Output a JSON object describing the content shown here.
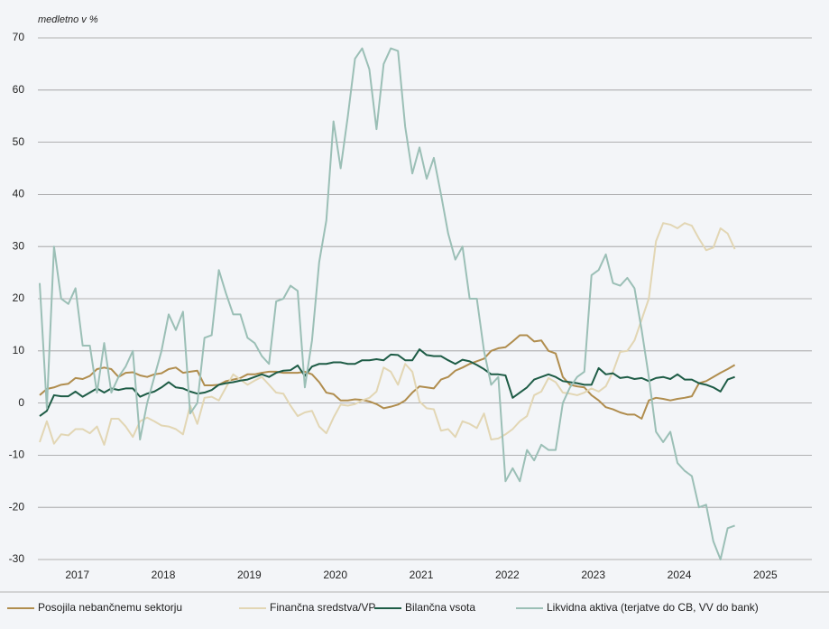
{
  "chart_data": {
    "type": "line",
    "y_label": "medletno v %",
    "categories": [
      null,
      null,
      null,
      null,
      null,
      null,
      "2017",
      null,
      null,
      null,
      null,
      null,
      null,
      null,
      null,
      null,
      null,
      null,
      "2018",
      null,
      null,
      null,
      null,
      null,
      null,
      null,
      null,
      null,
      null,
      null,
      "2019",
      null,
      null,
      null,
      null,
      null,
      null,
      null,
      null,
      null,
      null,
      null,
      "2020",
      null,
      null,
      null,
      null,
      null,
      null,
      null,
      null,
      null,
      null,
      null,
      "2021",
      null,
      null,
      null,
      null,
      null,
      null,
      null,
      null,
      null,
      null,
      null,
      "2022",
      null,
      null,
      null,
      null,
      null,
      null,
      null,
      null,
      null,
      null,
      null,
      "2023",
      null,
      null,
      null,
      null,
      null,
      null,
      null,
      null,
      null,
      null,
      null,
      "2024",
      null,
      null,
      null,
      null,
      null,
      null,
      null,
      null,
      null,
      null,
      null,
      "2025",
      null,
      null,
      null,
      null,
      null
    ],
    "series": [
      {
        "name": "Posojila nebančnemu sektorju",
        "color": "#b08d4e",
        "values": [
          1.5,
          2.7,
          3,
          3.5,
          3.7,
          4.8,
          4.6,
          5.2,
          6.5,
          6.8,
          6.5,
          5,
          5.8,
          5.9,
          5.3,
          5,
          5.5,
          5.7,
          6.5,
          6.8,
          5.8,
          6,
          6.2,
          3.4,
          3.4,
          3.5,
          4.2,
          4.5,
          4.8,
          5.5,
          5.5,
          5.8,
          6,
          6,
          5.8,
          5.8,
          5.8,
          6,
          5.5,
          4,
          2,
          1.7,
          0.5,
          0.5,
          0.7,
          0.6,
          0.3,
          -0.2,
          -1,
          -0.7,
          -0.3,
          0.5,
          2,
          3.2,
          3,
          2.8,
          4.5,
          5,
          6.2,
          6.8,
          7.5,
          8,
          8.5,
          10,
          10.5,
          10.7,
          11.8,
          13,
          13,
          11.8,
          12,
          10,
          9.5,
          5,
          3.5,
          3.2,
          3,
          1.5,
          0.5,
          -0.8,
          -1.2,
          -1.8,
          -2.2,
          -2.2,
          -3,
          0.5,
          1,
          0.8,
          0.5,
          0.8,
          1,
          1.3,
          3.8,
          4.2,
          5,
          5.8,
          6.5,
          7.3,
          null,
          null,
          null,
          null,
          null,
          null,
          null,
          null,
          null,
          null
        ]
      },
      {
        "name": "Finančna sredstva/VP",
        "color": "#e2d6b4",
        "values": [
          -7.5,
          -3.5,
          -7.8,
          -6,
          -6.2,
          -5,
          -5,
          -5.8,
          -4.5,
          -8,
          -3,
          -3,
          -4.5,
          -6.5,
          -3.5,
          -2.8,
          -3.5,
          -4.3,
          -4.5,
          -5,
          -6,
          -0.5,
          -4,
          1,
          1.2,
          0.5,
          3,
          5.5,
          4.5,
          3.5,
          4.3,
          5,
          3.5,
          2,
          1.8,
          -0.5,
          -2.5,
          -1.8,
          -1.5,
          -4.5,
          -5.8,
          -2.8,
          -0.3,
          -0.5,
          -0.2,
          0.5,
          1,
          2.2,
          6.8,
          6,
          3.5,
          7.5,
          6,
          0.3,
          -1,
          -1.2,
          -5.3,
          -5,
          -6.5,
          -3.5,
          -4,
          -4.8,
          -2,
          -7,
          -6.8,
          -6,
          -5,
          -3.5,
          -2.5,
          1.5,
          2.2,
          4.8,
          4,
          2,
          1.8,
          1.5,
          2,
          2.8,
          2.2,
          3.2,
          6,
          9.8,
          10,
          12,
          16,
          20,
          31,
          34.5,
          34.2,
          33.5,
          34.5,
          34,
          31.5,
          29.3,
          29.8,
          33.5,
          32.5,
          29.5,
          null,
          null,
          null,
          null,
          null,
          null,
          null,
          null,
          null,
          null
        ]
      },
      {
        "name": "Bilančna vsota",
        "color": "#1e5c46",
        "values": [
          -2.5,
          -1.5,
          1.5,
          1.3,
          1.3,
          2.2,
          1.2,
          2,
          2.8,
          2,
          2.8,
          2.5,
          2.8,
          2.8,
          1.2,
          1.8,
          2.2,
          3,
          4,
          3,
          2.8,
          2.2,
          1.8,
          2,
          2.5,
          3.5,
          3.8,
          4,
          4.3,
          4.5,
          5,
          5.5,
          5,
          5.8,
          6.2,
          6.3,
          7.2,
          5.2,
          7,
          7.5,
          7.5,
          7.8,
          7.8,
          7.5,
          7.5,
          8.2,
          8.2,
          8.4,
          8.2,
          9.3,
          9.2,
          8.2,
          8.2,
          10.3,
          9.2,
          9,
          9,
          8.2,
          7.5,
          8.3,
          8,
          7.3,
          6.5,
          5.5,
          5.5,
          5.3,
          1,
          2,
          3,
          4.5,
          5,
          5.5,
          5,
          4.2,
          4,
          3.8,
          3.5,
          3.5,
          6.7,
          5.5,
          5.7,
          4.8,
          5,
          4.6,
          4.8,
          4.2,
          4.8,
          5,
          4.6,
          5.5,
          4.5,
          4.5,
          3.8,
          3.5,
          3,
          2.2,
          4.5,
          5,
          null,
          null,
          null,
          null,
          null,
          null,
          null,
          null,
          null,
          null
        ]
      },
      {
        "name": "Likvidna aktiva (terjatve do CB, VV do bank)",
        "color": "#9bbfb6",
        "values": [
          23,
          -1,
          30,
          20,
          19,
          22,
          11,
          11,
          2,
          11.5,
          2,
          5,
          7,
          10,
          -7,
          0,
          5,
          10,
          17,
          14,
          17.5,
          -2,
          0,
          12.5,
          13,
          25.5,
          21,
          17,
          17,
          12.5,
          11.5,
          9,
          7.5,
          19.5,
          20,
          22.5,
          21.5,
          3,
          12,
          27,
          35,
          54,
          45,
          55,
          66,
          68,
          64,
          52.5,
          65,
          68,
          67.5,
          53,
          44,
          49,
          43,
          47,
          40,
          32.5,
          27.5,
          30,
          20,
          20,
          10,
          3.5,
          5,
          -15,
          -12.5,
          -15,
          -9,
          -11,
          -8,
          -9,
          -9,
          0,
          3,
          5,
          6,
          24.5,
          25.5,
          28.5,
          23,
          22.5,
          24,
          22,
          14,
          5,
          -5.5,
          -7.5,
          -5.5,
          -11.5,
          -13,
          -14,
          -20,
          -19.5,
          -26.5,
          -30,
          -24,
          -23.5,
          null,
          null,
          null,
          null,
          null,
          null,
          null,
          null,
          null,
          null
        ]
      }
    ],
    "ylim": [
      -30,
      70
    ],
    "yticks": [
      -30,
      -20,
      -10,
      0,
      10,
      20,
      30,
      40,
      50,
      60,
      70
    ],
    "grid": true,
    "legend": "bottom"
  }
}
